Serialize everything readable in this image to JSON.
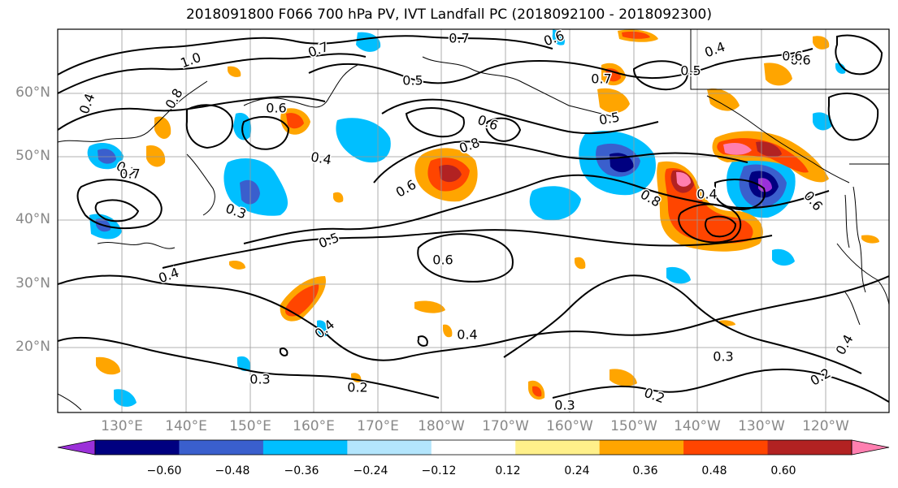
{
  "title": "2018091800 F066 700 hPa PV, IVT Landfall PC (2018092100 - 2018092300)",
  "lat_labels": [
    "60°N",
    "50°N",
    "40°N",
    "30°N",
    "20°N"
  ],
  "lon_labels": [
    "130°E",
    "140°E",
    "150°E",
    "160°E",
    "170°E",
    "180°W",
    "170°W",
    "160°W",
    "150°W",
    "140°W",
    "130°W",
    "120°W"
  ],
  "colorbar": {
    "ticks": [
      "−0.60",
      "−0.48",
      "−0.36",
      "−0.24",
      "−0.12",
      "0.12",
      "0.24",
      "0.36",
      "0.48",
      "0.60"
    ],
    "colors": [
      "#9b30d9",
      "#000080",
      "#3a5fcd",
      "#00bfff",
      "#b3e5fc",
      "#ffffff",
      "#fff08a",
      "#ffa500",
      "#ff4500",
      "#b22222",
      "#ff7fb0"
    ]
  },
  "contour_labels": [
    "1.0",
    "0.7",
    "0.7",
    "0.6",
    "0.5",
    "0.4",
    "0.8",
    "0.6",
    "0.7",
    "0.5",
    "0.7",
    "0.6",
    "0.8",
    "0.6",
    "0.4",
    "0.5",
    "0.6",
    "0.3",
    "0.4",
    "0.3",
    "0.2",
    "0.4",
    "0.3",
    "0.2",
    "0.3",
    "0.5",
    "0.4",
    "0.4",
    "0.6",
    "0.6",
    "0.4",
    "0.8",
    "0.7",
    "0.4",
    "0.2",
    "0.6"
  ]
}
